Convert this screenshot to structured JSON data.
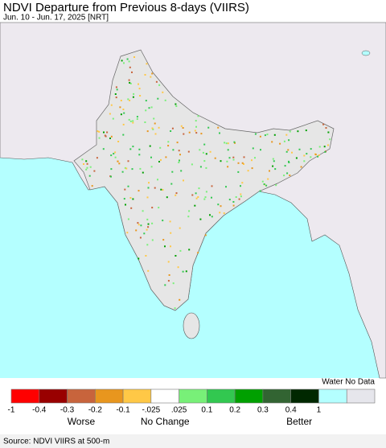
{
  "header": {
    "title": "NDVI Departure from Previous 8-days (VIIRS)",
    "subtitle": "Jun. 10 - Jun. 17, 2025 [NRT]"
  },
  "legend": {
    "swatches": [
      "#ff0000",
      "#990000",
      "#c8643c",
      "#e8961e",
      "#ffc846",
      "#ffffff",
      "#78f078",
      "#32c850",
      "#00a000",
      "#326432",
      "#002800",
      "#b4ffff",
      "#e6e6ec"
    ],
    "ticks": [
      "-1",
      "-0.4",
      "-0.3",
      "-0.2",
      "-0.1",
      "-.025",
      ".025",
      "0.1",
      "0.2",
      "0.3",
      "0.4",
      "1"
    ],
    "special_label": "Water No Data",
    "categories": [
      "Worse",
      "No Change",
      "Better"
    ]
  },
  "source": "Source: NDVI VIIRS at 500-m"
}
